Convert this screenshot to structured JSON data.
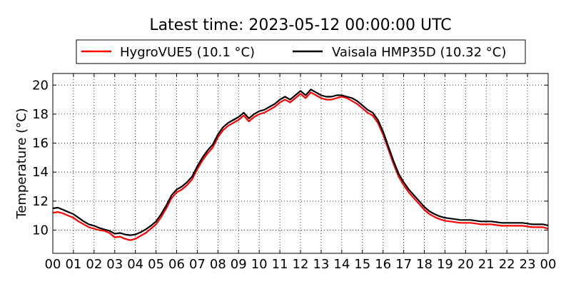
{
  "chart_data": {
    "type": "line",
    "title": "Latest time: 2023-05-12 00:00:00 UTC",
    "xlabel": "",
    "ylabel": "Temperature (°C)",
    "xlim": [
      0,
      24
    ],
    "ylim": [
      8.4,
      20.8
    ],
    "x_ticks": [
      "00",
      "01",
      "02",
      "03",
      "04",
      "05",
      "06",
      "07",
      "08",
      "09",
      "10",
      "11",
      "12",
      "13",
      "14",
      "15",
      "16",
      "17",
      "18",
      "19",
      "20",
      "21",
      "22",
      "23",
      "00"
    ],
    "y_ticks": [
      10,
      12,
      14,
      16,
      18,
      20
    ],
    "grid": true,
    "legend_position": "top",
    "series": [
      {
        "name": "HygroVUE5 (10.1 °C)",
        "color": "#ff0000",
        "x": [
          0,
          0.25,
          0.5,
          0.75,
          1,
          1.25,
          1.5,
          1.75,
          2,
          2.25,
          2.5,
          2.75,
          3,
          3.25,
          3.5,
          3.75,
          4,
          4.25,
          4.5,
          4.75,
          5,
          5.25,
          5.5,
          5.75,
          6,
          6.25,
          6.5,
          6.75,
          7,
          7.25,
          7.5,
          7.75,
          8,
          8.25,
          8.5,
          8.75,
          9,
          9.25,
          9.5,
          9.75,
          10,
          10.25,
          10.5,
          10.75,
          11,
          11.25,
          11.5,
          11.75,
          12,
          12.25,
          12.5,
          12.75,
          13,
          13.25,
          13.5,
          13.75,
          14,
          14.25,
          14.5,
          14.75,
          15,
          15.25,
          15.5,
          15.75,
          16,
          16.25,
          16.5,
          16.75,
          17,
          17.25,
          17.5,
          17.75,
          18,
          18.25,
          18.5,
          18.75,
          19,
          19.25,
          19.5,
          19.75,
          20,
          20.25,
          20.5,
          20.75,
          21,
          21.25,
          21.5,
          21.75,
          22,
          22.25,
          22.5,
          22.75,
          23,
          23.25,
          23.5,
          23.75,
          24
        ],
        "y": [
          11.2,
          11.25,
          11.15,
          11.0,
          10.85,
          10.6,
          10.4,
          10.2,
          10.1,
          10.0,
          9.95,
          9.8,
          9.5,
          9.55,
          9.4,
          9.3,
          9.4,
          9.6,
          9.8,
          10.1,
          10.4,
          10.9,
          11.5,
          12.2,
          12.6,
          12.8,
          13.1,
          13.5,
          14.2,
          14.8,
          15.3,
          15.7,
          16.4,
          16.9,
          17.2,
          17.4,
          17.6,
          17.9,
          17.5,
          17.8,
          18.0,
          18.1,
          18.3,
          18.5,
          18.8,
          19.0,
          18.8,
          19.1,
          19.4,
          19.1,
          19.5,
          19.3,
          19.1,
          19.0,
          19.0,
          19.1,
          19.2,
          19.1,
          18.9,
          18.7,
          18.4,
          18.1,
          17.9,
          17.4,
          16.6,
          15.6,
          14.6,
          13.7,
          13.1,
          12.6,
          12.2,
          11.8,
          11.4,
          11.1,
          10.9,
          10.75,
          10.65,
          10.6,
          10.55,
          10.5,
          10.5,
          10.5,
          10.45,
          10.4,
          10.4,
          10.4,
          10.35,
          10.3,
          10.3,
          10.3,
          10.3,
          10.3,
          10.25,
          10.2,
          10.2,
          10.2,
          10.1
        ]
      },
      {
        "name": "Vaisala HMP35D (10.32 °C)",
        "color": "#000000",
        "x": [
          0,
          0.25,
          0.5,
          0.75,
          1,
          1.25,
          1.5,
          1.75,
          2,
          2.25,
          2.5,
          2.75,
          3,
          3.25,
          3.5,
          3.75,
          4,
          4.25,
          4.5,
          4.75,
          5,
          5.25,
          5.5,
          5.75,
          6,
          6.25,
          6.5,
          6.75,
          7,
          7.25,
          7.5,
          7.75,
          8,
          8.25,
          8.5,
          8.75,
          9,
          9.25,
          9.5,
          9.75,
          10,
          10.25,
          10.5,
          10.75,
          11,
          11.25,
          11.5,
          11.75,
          12,
          12.25,
          12.5,
          12.75,
          13,
          13.25,
          13.5,
          13.75,
          14,
          14.25,
          14.5,
          14.75,
          15,
          15.25,
          15.5,
          15.75,
          16,
          16.25,
          16.5,
          16.75,
          17,
          17.25,
          17.5,
          17.75,
          18,
          18.25,
          18.5,
          18.75,
          19,
          19.25,
          19.5,
          19.75,
          20,
          20.25,
          20.5,
          20.75,
          21,
          21.25,
          21.5,
          21.75,
          22,
          22.25,
          22.5,
          22.75,
          23,
          23.25,
          23.5,
          23.75,
          24
        ],
        "y": [
          11.5,
          11.55,
          11.4,
          11.25,
          11.1,
          10.85,
          10.6,
          10.4,
          10.3,
          10.15,
          10.05,
          9.95,
          9.75,
          9.8,
          9.7,
          9.65,
          9.7,
          9.85,
          10.05,
          10.3,
          10.6,
          11.1,
          11.7,
          12.4,
          12.8,
          13.0,
          13.3,
          13.7,
          14.4,
          15.0,
          15.5,
          15.9,
          16.6,
          17.1,
          17.4,
          17.6,
          17.8,
          18.1,
          17.7,
          18.0,
          18.2,
          18.3,
          18.5,
          18.7,
          19.0,
          19.2,
          19.0,
          19.3,
          19.6,
          19.3,
          19.7,
          19.5,
          19.3,
          19.2,
          19.2,
          19.3,
          19.3,
          19.2,
          19.1,
          18.9,
          18.6,
          18.3,
          18.1,
          17.6,
          16.8,
          15.8,
          14.8,
          13.9,
          13.3,
          12.8,
          12.4,
          12.0,
          11.6,
          11.3,
          11.1,
          10.95,
          10.85,
          10.8,
          10.75,
          10.7,
          10.7,
          10.7,
          10.65,
          10.6,
          10.6,
          10.6,
          10.55,
          10.5,
          10.5,
          10.5,
          10.5,
          10.5,
          10.45,
          10.4,
          10.4,
          10.4,
          10.32
        ]
      }
    ]
  }
}
